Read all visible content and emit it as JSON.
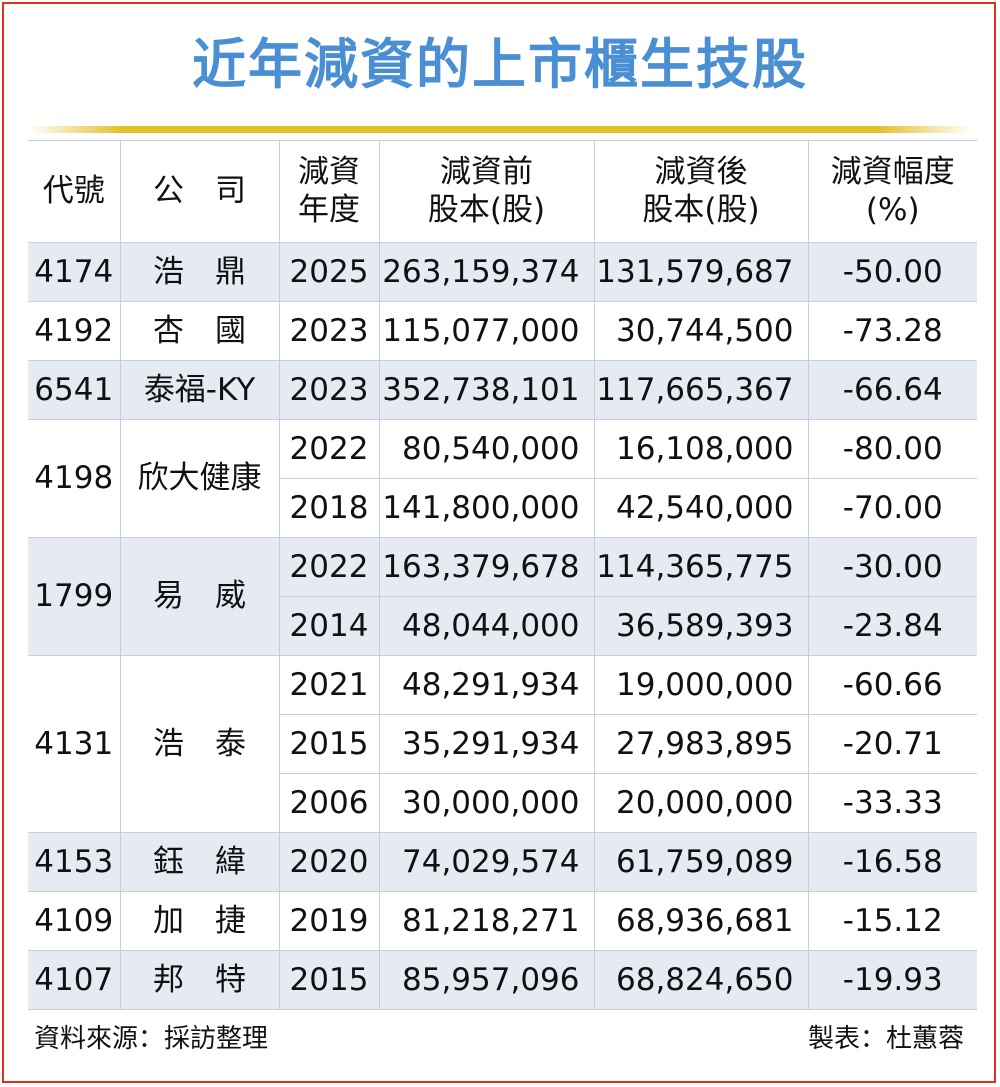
{
  "title": "近年減資的上市櫃生技股",
  "headers": {
    "code": "代號",
    "company": "公　司",
    "year_line1": "減資",
    "year_line2": "年度",
    "before_line1": "減資前",
    "before_line2": "股本(股)",
    "after_line1": "減資後",
    "after_line2": "股本(股)",
    "pct_line1": "減資幅度",
    "pct_line2": "(%)"
  },
  "rows": [
    {
      "code": "4174",
      "company": "浩　鼎",
      "entries": [
        {
          "year": "2025",
          "before": "263,159,374",
          "after": "131,579,687",
          "pct": "-50.00"
        }
      ]
    },
    {
      "code": "4192",
      "company": "杏　國",
      "entries": [
        {
          "year": "2023",
          "before": "115,077,000",
          "after": "30,744,500",
          "pct": "-73.28"
        }
      ]
    },
    {
      "code": "6541",
      "company": "泰福-KY",
      "entries": [
        {
          "year": "2023",
          "before": "352,738,101",
          "after": "117,665,367",
          "pct": "-66.64"
        }
      ]
    },
    {
      "code": "4198",
      "company": "欣大健康",
      "entries": [
        {
          "year": "2022",
          "before": "80,540,000",
          "after": "16,108,000",
          "pct": "-80.00"
        },
        {
          "year": "2018",
          "before": "141,800,000",
          "after": "42,540,000",
          "pct": "-70.00"
        }
      ]
    },
    {
      "code": "1799",
      "company": "易　威",
      "entries": [
        {
          "year": "2022",
          "before": "163,379,678",
          "after": "114,365,775",
          "pct": "-30.00"
        },
        {
          "year": "2014",
          "before": "48,044,000",
          "after": "36,589,393",
          "pct": "-23.84"
        }
      ]
    },
    {
      "code": "4131",
      "company": "浩　泰",
      "entries": [
        {
          "year": "2021",
          "before": "48,291,934",
          "after": "19,000,000",
          "pct": "-60.66"
        },
        {
          "year": "2015",
          "before": "35,291,934",
          "after": "27,983,895",
          "pct": "-20.71"
        },
        {
          "year": "2006",
          "before": "30,000,000",
          "after": "20,000,000",
          "pct": "-33.33"
        }
      ]
    },
    {
      "code": "4153",
      "company": "鈺　緯",
      "entries": [
        {
          "year": "2020",
          "before": "74,029,574",
          "after": "61,759,089",
          "pct": "-16.58"
        }
      ]
    },
    {
      "code": "4109",
      "company": "加　捷",
      "entries": [
        {
          "year": "2019",
          "before": "81,218,271",
          "after": "68,936,681",
          "pct": "-15.12"
        }
      ]
    },
    {
      "code": "4107",
      "company": "邦　特",
      "entries": [
        {
          "year": "2015",
          "before": "85,957,096",
          "after": "68,824,650",
          "pct": "-19.93"
        }
      ]
    }
  ],
  "footer": {
    "source": "資料來源：採訪整理",
    "maker": "製表：杜蕙蓉"
  },
  "colors": {
    "title": "#4a8fd4",
    "border": "#e0301e",
    "rule": "#e3bf28",
    "shade": "#e6ebf3"
  }
}
